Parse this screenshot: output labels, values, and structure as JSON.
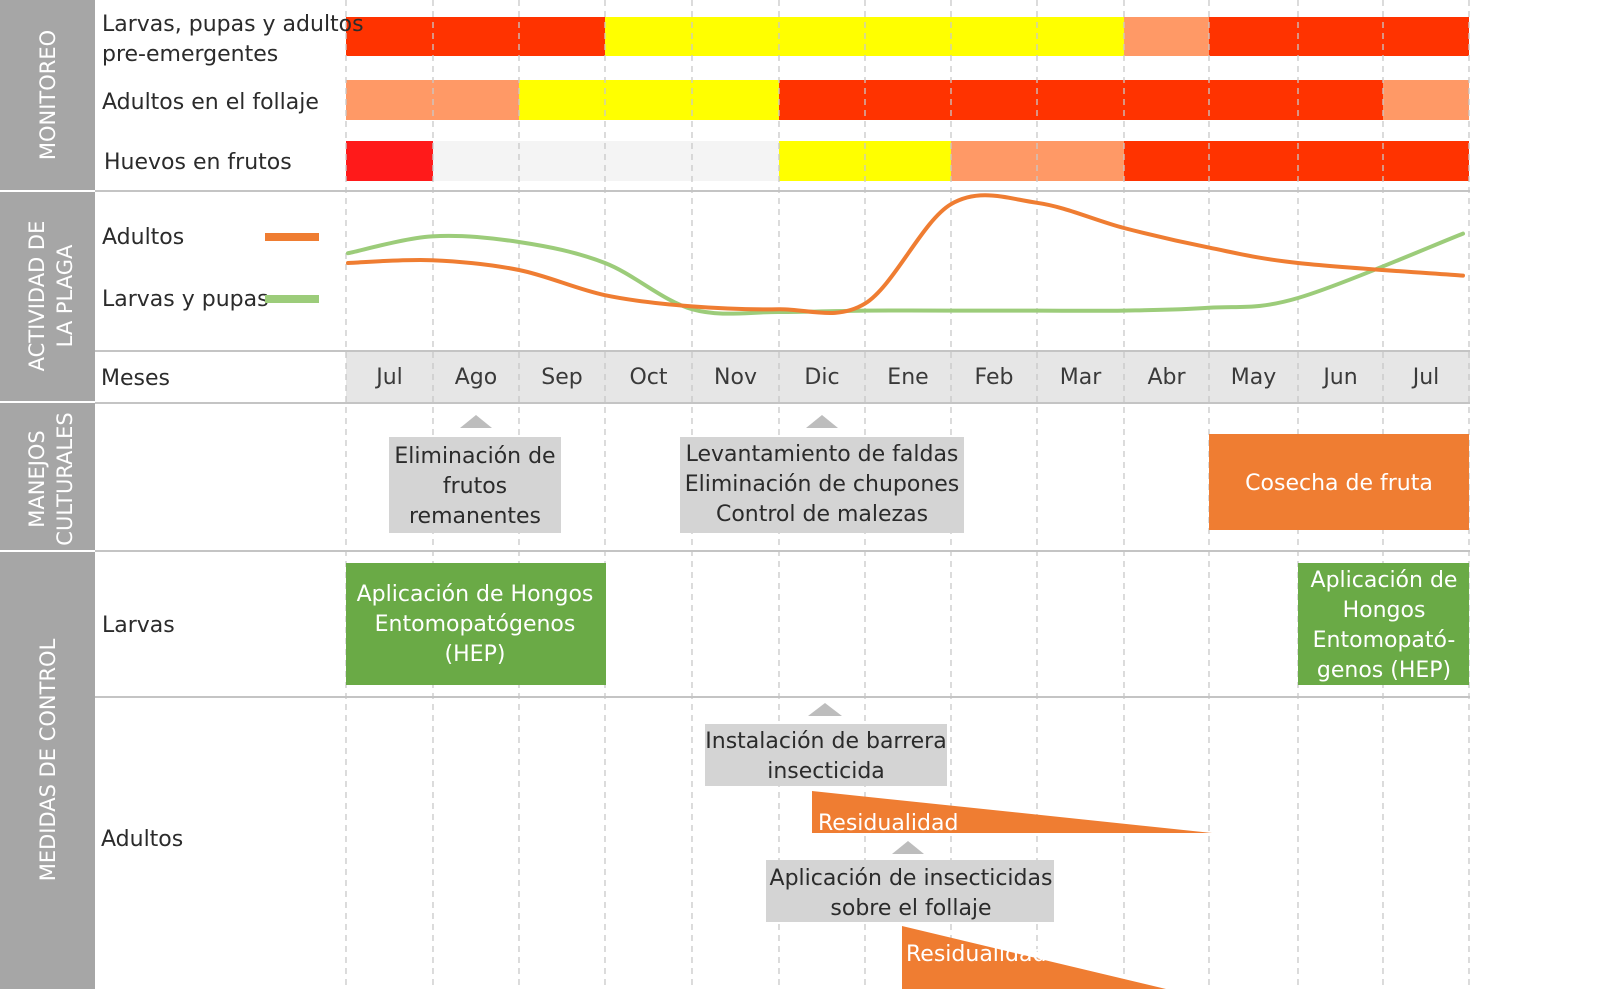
{
  "sections": {
    "monitoreo": "MONITOREO",
    "actividad_line1": "ACTIVIDAD DE",
    "actividad_line2": "LA PLAGA",
    "manejos_line1": "MANEJOS",
    "manejos_line2": "CULTURALES",
    "medidas": "MEDIDAS DE CONTROL"
  },
  "colors": {
    "high": "#ff3300",
    "peak": "#ff1a1a",
    "medium": "#ff9966",
    "low": "#ffff00",
    "none": "#f4f4f4",
    "adults_line": "#ef7d32",
    "larvae_line": "#9ccc7a",
    "gray_box": "#d4d4d4",
    "orange_box": "#ef7d32",
    "green_box": "#6aaa46",
    "sidebar": "#a6a6a6"
  },
  "monitoring": {
    "rows": [
      {
        "label_lines": [
          "Larvas, pupas y adultos",
          "pre-emergentes"
        ],
        "cells": [
          "high",
          "high",
          "high",
          "low",
          "low",
          "low",
          "low",
          "low",
          "low",
          "medium",
          "high",
          "high",
          "high"
        ]
      },
      {
        "label_lines": [
          "Adultos en el follaje"
        ],
        "cells": [
          "medium",
          "medium",
          "low",
          "low",
          "low",
          "high",
          "high",
          "high",
          "high",
          "high",
          "high",
          "high",
          "medium"
        ]
      },
      {
        "label_lines": [
          "Huevos en frutos"
        ],
        "cells": [
          "peak",
          "none",
          "none",
          "none",
          "none",
          "low",
          "low",
          "medium",
          "medium",
          "high",
          "high",
          "high",
          "high"
        ]
      }
    ]
  },
  "activity": {
    "legend": [
      {
        "name": "Adultos",
        "color_key": "adults_line"
      },
      {
        "name": "Larvas y pupas",
        "color_key": "larvae_line"
      }
    ]
  },
  "chart_data": {
    "type": "line",
    "x": [
      "Jul",
      "Ago",
      "Sep",
      "Oct",
      "Nov",
      "Dic",
      "Ene",
      "Feb",
      "Mar",
      "Abr",
      "May",
      "Jun",
      "Jul"
    ],
    "ylim": [
      0,
      100
    ],
    "series": [
      {
        "name": "Adultos",
        "values": [
          55,
          57,
          50,
          32,
          24,
          22,
          26,
          97,
          98,
          80,
          66,
          55,
          46
        ]
      },
      {
        "name": "Larvas y pupas",
        "values": [
          62,
          74,
          70,
          55,
          22,
          20,
          21,
          21,
          21,
          21,
          23,
          30,
          76
        ]
      }
    ]
  },
  "months_header": {
    "label": "Meses",
    "months": [
      "Jul",
      "Ago",
      "Sep",
      "Oct",
      "Nov",
      "Dic",
      "Ene",
      "Feb",
      "Mar",
      "Abr",
      "May",
      "Jun",
      "Jul"
    ]
  },
  "cultural": {
    "boxes": [
      {
        "lines": [
          "Eliminación de",
          "frutos",
          "remanentes"
        ]
      },
      {
        "lines": [
          "Levantamiento de faldas",
          "Eliminación de chupones",
          "Control de malezas"
        ]
      },
      {
        "lines": [
          "Cosecha de fruta"
        ]
      }
    ]
  },
  "control": {
    "larvae": {
      "label": "Larvas",
      "boxes": [
        {
          "lines": [
            "Aplicación de Hongos",
            "Entomopatógenos",
            "(HEP)"
          ]
        },
        {
          "lines": [
            "Aplicación de",
            "Hongos",
            "Entomopató-",
            "genos (HEP)"
          ]
        }
      ]
    },
    "adults": {
      "label": "Adultos",
      "boxes": [
        {
          "lines": [
            "Instalación de barrera",
            "insecticida"
          ]
        },
        {
          "lines": [
            "Aplicación de insecticidas",
            "sobre el follaje"
          ]
        }
      ],
      "residual_labels": [
        "Residualidad",
        "Residualidad"
      ]
    }
  }
}
